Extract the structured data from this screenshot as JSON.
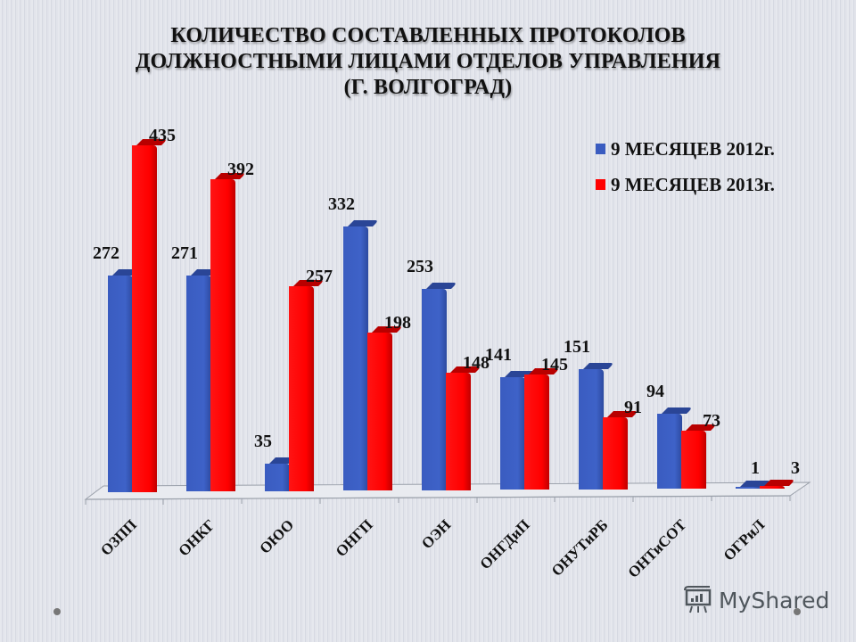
{
  "slide": {
    "title_lines": [
      "КОЛИЧЕСТВО СОСТАВЛЕННЫХ ПРОТОКОЛОВ",
      "ДОЛЖНОСТНЫМИ ЛИЦАМИ ОТДЕЛОВ УПРАВЛЕНИЯ",
      "(Г. ВОЛГОГРАД)"
    ],
    "watermark": "MyShared"
  },
  "legend": [
    {
      "label": "9 МЕСЯЦЕВ 2012г.",
      "color": "#3a5cc0"
    },
    {
      "label": "9 МЕСЯЦЕВ 2013г.",
      "color": "#ff0000"
    }
  ],
  "chart_data": {
    "type": "bar",
    "title": "КОЛИЧЕСТВО СОСТАВЛЕННЫХ ПРОТОКОЛОВ ДОЛЖНОСТНЫМИ ЛИЦАМИ ОТДЕЛОВ УПРАВЛЕНИЯ (Г. ВОЛГОГРАД)",
    "categories": [
      "ОЗПП",
      "ОНКГ",
      "ОЮО",
      "ОНГП",
      "ОЭН",
      "ОНГДиП",
      "ОНУТиРБ",
      "ОНТиСОТ",
      "ОГРиЛ"
    ],
    "series": [
      {
        "name": "9 МЕСЯЦЕВ 2012г.",
        "color": "#3a5cc0",
        "values": [
          272,
          271,
          35,
          332,
          253,
          141,
          151,
          94,
          1
        ]
      },
      {
        "name": "9 МЕСЯЦЕВ 2013г.",
        "color": "#ff0000",
        "values": [
          435,
          392,
          257,
          198,
          148,
          145,
          91,
          73,
          3
        ]
      }
    ],
    "xlabel": "",
    "ylabel": "",
    "ylim": [
      0,
      450
    ],
    "grid": false,
    "legend_position": "top-right",
    "data_labels": true,
    "style": "3d-column"
  }
}
